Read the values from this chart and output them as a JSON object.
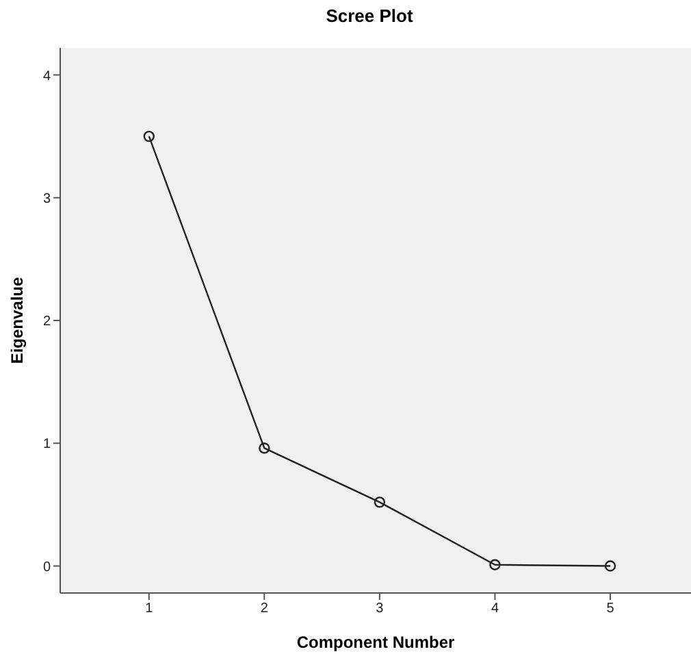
{
  "chart_data": {
    "type": "line",
    "title": "Scree Plot",
    "xlabel": "Component Number",
    "ylabel": "Eigenvalue",
    "x": [
      1,
      2,
      3,
      4,
      5
    ],
    "series": [
      {
        "color": "#222222",
        "values": [
          3.5,
          0.96,
          0.52,
          0.01,
          0
        ]
      }
    ],
    "xlim": [
      0.23,
      5.7
    ],
    "xticks": [
      1,
      2,
      3,
      4,
      5
    ],
    "ylim": [
      -0.22,
      4.22
    ],
    "yticks": [
      0,
      1,
      2,
      3,
      4
    ],
    "grid": false,
    "marker": "circle",
    "line_style": "solid"
  }
}
